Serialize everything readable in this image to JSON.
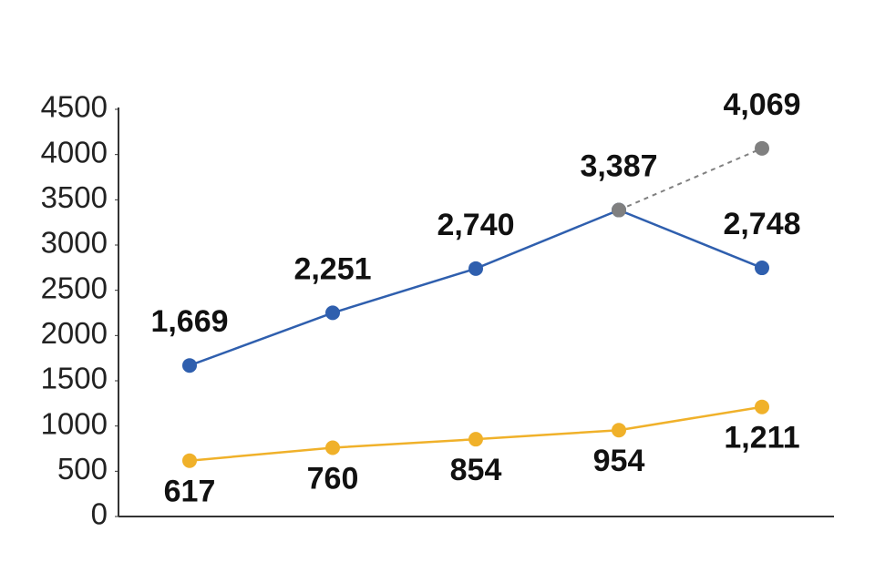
{
  "chart_data": {
    "type": "line",
    "categories": [
      null,
      null,
      null,
      null,
      null
    ],
    "series": [
      {
        "color": "#2f5fae",
        "values": [
          1669,
          2251,
          2740,
          3387,
          2748
        ],
        "value_labels": [
          "1,669",
          "2,251",
          "2,740",
          "3,387",
          "2,748"
        ],
        "label_position": "above"
      },
      {
        "color": "#f0b12a",
        "values": [
          617,
          760,
          854,
          954,
          1211
        ],
        "value_labels": [
          "617",
          "760",
          "854",
          "954",
          "1,211"
        ],
        "label_position": "below"
      },
      {
        "color": "#808080",
        "values": [
          null,
          null,
          null,
          3387,
          4069
        ],
        "value_labels": [
          null,
          null,
          null,
          null,
          "4,069"
        ],
        "label_position": "above",
        "line_style": "dashed"
      }
    ],
    "ylim": [
      0,
      4500
    ],
    "yticks": [
      0,
      500,
      1000,
      1500,
      2000,
      2500,
      3000,
      3500,
      4000,
      4500
    ],
    "grid": false
  }
}
